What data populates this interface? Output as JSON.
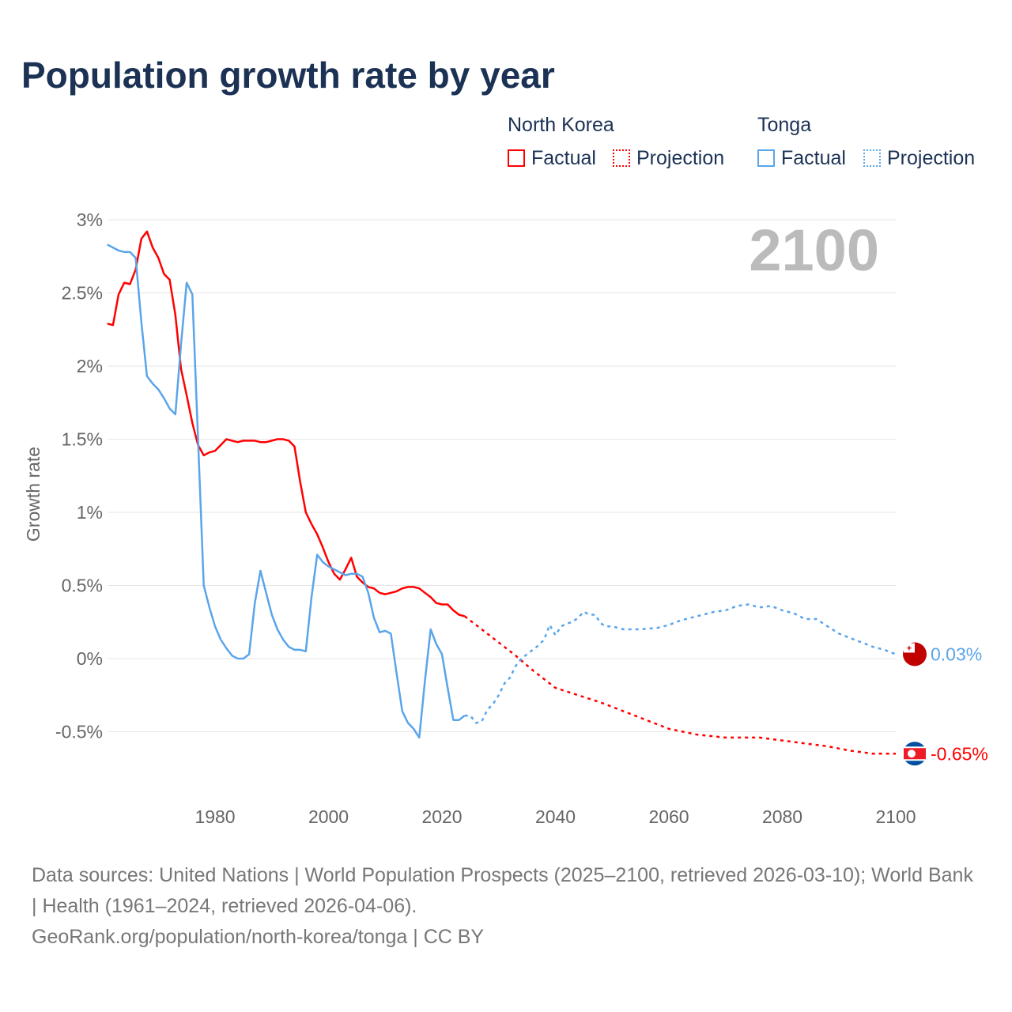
{
  "title": "Population growth rate by year",
  "legend": {
    "groups": [
      {
        "name": "North Korea",
        "factual": "Factual",
        "projection": "Projection",
        "color": "#ff0000"
      },
      {
        "name": "Tonga",
        "factual": "Factual",
        "projection": "Projection",
        "color": "#5aa5ea"
      }
    ]
  },
  "year_label": "2100",
  "footer": {
    "sources": "Data sources: United Nations | World Population Prospects (2025–2100, retrieved 2026-03-10); World Bank | Health (1961–2024, retrieved 2026-04-06).",
    "link": "GeoRank.org/population/north-korea/tonga | CC BY"
  },
  "chart_data": {
    "type": "line",
    "title": "Population growth rate by year",
    "xlabel": "",
    "ylabel": "Growth rate",
    "xlim": [
      1961,
      2100
    ],
    "ylim": [
      -0.8,
      3.1
    ],
    "x_ticks": [
      {
        "v": 1980,
        "label": "1980"
      },
      {
        "v": 2000,
        "label": "2000"
      },
      {
        "v": 2020,
        "label": "2020"
      },
      {
        "v": 2040,
        "label": "2040"
      },
      {
        "v": 2060,
        "label": "2060"
      },
      {
        "v": 2080,
        "label": "2080"
      },
      {
        "v": 2100,
        "label": "2100"
      }
    ],
    "y_ticks": [
      {
        "v": 3,
        "label": "3%"
      },
      {
        "v": 2.5,
        "label": "2.5%"
      },
      {
        "v": 2,
        "label": "2%"
      },
      {
        "v": 1.5,
        "label": "1.5%"
      },
      {
        "v": 1,
        "label": "1%"
      },
      {
        "v": 0.5,
        "label": "0.5%"
      },
      {
        "v": 0,
        "label": "0%"
      },
      {
        "v": -0.5,
        "label": "-0.5%"
      }
    ],
    "series": [
      {
        "name": "North Korea",
        "kind": "factual",
        "color": "#ff0000",
        "x": [
          1961,
          1962,
          1963,
          1964,
          1965,
          1966,
          1967,
          1968,
          1969,
          1970,
          1971,
          1972,
          1973,
          1974,
          1975,
          1976,
          1977,
          1978,
          1979,
          1980,
          1981,
          1982,
          1983,
          1984,
          1985,
          1986,
          1987,
          1988,
          1989,
          1990,
          1991,
          1992,
          1993,
          1994,
          1995,
          1996,
          1997,
          1998,
          1999,
          2000,
          2001,
          2002,
          2003,
          2004,
          2005,
          2006,
          2007,
          2008,
          2009,
          2010,
          2011,
          2012,
          2013,
          2014,
          2015,
          2016,
          2017,
          2018,
          2019,
          2020,
          2021,
          2022,
          2023,
          2024
        ],
        "y": [
          2.29,
          2.28,
          2.49,
          2.57,
          2.56,
          2.66,
          2.87,
          2.92,
          2.81,
          2.74,
          2.63,
          2.59,
          2.35,
          1.98,
          1.8,
          1.61,
          1.46,
          1.39,
          1.41,
          1.42,
          1.46,
          1.5,
          1.49,
          1.48,
          1.49,
          1.49,
          1.49,
          1.48,
          1.48,
          1.49,
          1.5,
          1.5,
          1.49,
          1.45,
          1.21,
          1.0,
          0.92,
          0.85,
          0.76,
          0.66,
          0.58,
          0.54,
          0.61,
          0.69,
          0.56,
          0.52,
          0.49,
          0.48,
          0.45,
          0.44,
          0.45,
          0.46,
          0.48,
          0.49,
          0.49,
          0.48,
          0.45,
          0.42,
          0.38,
          0.37,
          0.37,
          0.33,
          0.3,
          0.29
        ]
      },
      {
        "name": "North Korea",
        "kind": "projection",
        "color": "#ff0000",
        "x": [
          2024,
          2027,
          2030,
          2033,
          2036,
          2040,
          2044,
          2048,
          2052,
          2056,
          2060,
          2065,
          2070,
          2076,
          2080,
          2084,
          2088,
          2092,
          2096,
          2100
        ],
        "y": [
          0.29,
          0.2,
          0.11,
          0.02,
          -0.08,
          -0.2,
          -0.25,
          -0.3,
          -0.36,
          -0.42,
          -0.48,
          -0.52,
          -0.54,
          -0.54,
          -0.56,
          -0.58,
          -0.6,
          -0.63,
          -0.65,
          -0.65
        ]
      },
      {
        "name": "Tonga",
        "kind": "factual",
        "color": "#5aa5ea",
        "x": [
          1961,
          1962,
          1963,
          1964,
          1965,
          1966,
          1967,
          1968,
          1969,
          1970,
          1971,
          1972,
          1973,
          1974,
          1975,
          1976,
          1977,
          1978,
          1979,
          1980,
          1981,
          1982,
          1983,
          1984,
          1985,
          1986,
          1987,
          1988,
          1989,
          1990,
          1991,
          1992,
          1993,
          1994,
          1995,
          1996,
          1997,
          1998,
          1999,
          2000,
          2001,
          2002,
          2003,
          2004,
          2005,
          2006,
          2007,
          2008,
          2009,
          2010,
          2011,
          2012,
          2013,
          2014,
          2015,
          2016,
          2017,
          2018,
          2019,
          2020,
          2021,
          2022,
          2023,
          2024
        ],
        "y": [
          2.83,
          2.81,
          2.79,
          2.78,
          2.78,
          2.74,
          2.3,
          1.93,
          1.88,
          1.84,
          1.78,
          1.71,
          1.67,
          2.15,
          2.57,
          2.49,
          1.5,
          0.5,
          0.35,
          0.22,
          0.13,
          0.07,
          0.02,
          0.0,
          0.0,
          0.03,
          0.38,
          0.6,
          0.45,
          0.3,
          0.2,
          0.13,
          0.08,
          0.06,
          0.06,
          0.05,
          0.42,
          0.71,
          0.66,
          0.63,
          0.61,
          0.59,
          0.57,
          0.58,
          0.58,
          0.56,
          0.45,
          0.28,
          0.18,
          0.19,
          0.17,
          -0.1,
          -0.36,
          -0.44,
          -0.48,
          -0.54,
          -0.15,
          0.2,
          0.1,
          0.03,
          -0.2,
          -0.42,
          -0.42,
          -0.39
        ]
      },
      {
        "name": "Tonga",
        "kind": "projection",
        "color": "#5aa5ea",
        "x": [
          2024,
          2025,
          2026,
          2027,
          2028,
          2029,
          2030,
          2031,
          2032,
          2033,
          2034,
          2035,
          2036,
          2037,
          2038,
          2039,
          2040,
          2041,
          2042,
          2043,
          2044,
          2045,
          2046,
          2047,
          2048,
          2049,
          2050,
          2052,
          2055,
          2058,
          2060,
          2062,
          2064,
          2066,
          2068,
          2070,
          2072,
          2074,
          2076,
          2078,
          2080,
          2082,
          2084,
          2086,
          2088,
          2090,
          2092,
          2094,
          2096,
          2098,
          2100
        ],
        "y": [
          -0.39,
          -0.39,
          -0.44,
          -0.43,
          -0.35,
          -0.31,
          -0.25,
          -0.17,
          -0.13,
          -0.05,
          0.0,
          0.03,
          0.06,
          0.09,
          0.13,
          0.23,
          0.16,
          0.22,
          0.24,
          0.25,
          0.28,
          0.32,
          0.3,
          0.3,
          0.24,
          0.22,
          0.22,
          0.2,
          0.2,
          0.21,
          0.23,
          0.26,
          0.28,
          0.3,
          0.32,
          0.33,
          0.36,
          0.37,
          0.35,
          0.36,
          0.33,
          0.31,
          0.27,
          0.27,
          0.22,
          0.17,
          0.14,
          0.11,
          0.08,
          0.06,
          0.03
        ]
      }
    ],
    "end_labels": [
      {
        "name": "Tonga",
        "value": 0.03,
        "label": "0.03%",
        "color": "#5aa5ea"
      },
      {
        "name": "North Korea",
        "value": -0.65,
        "label": "-0.65%",
        "color": "#ff0000"
      }
    ]
  }
}
